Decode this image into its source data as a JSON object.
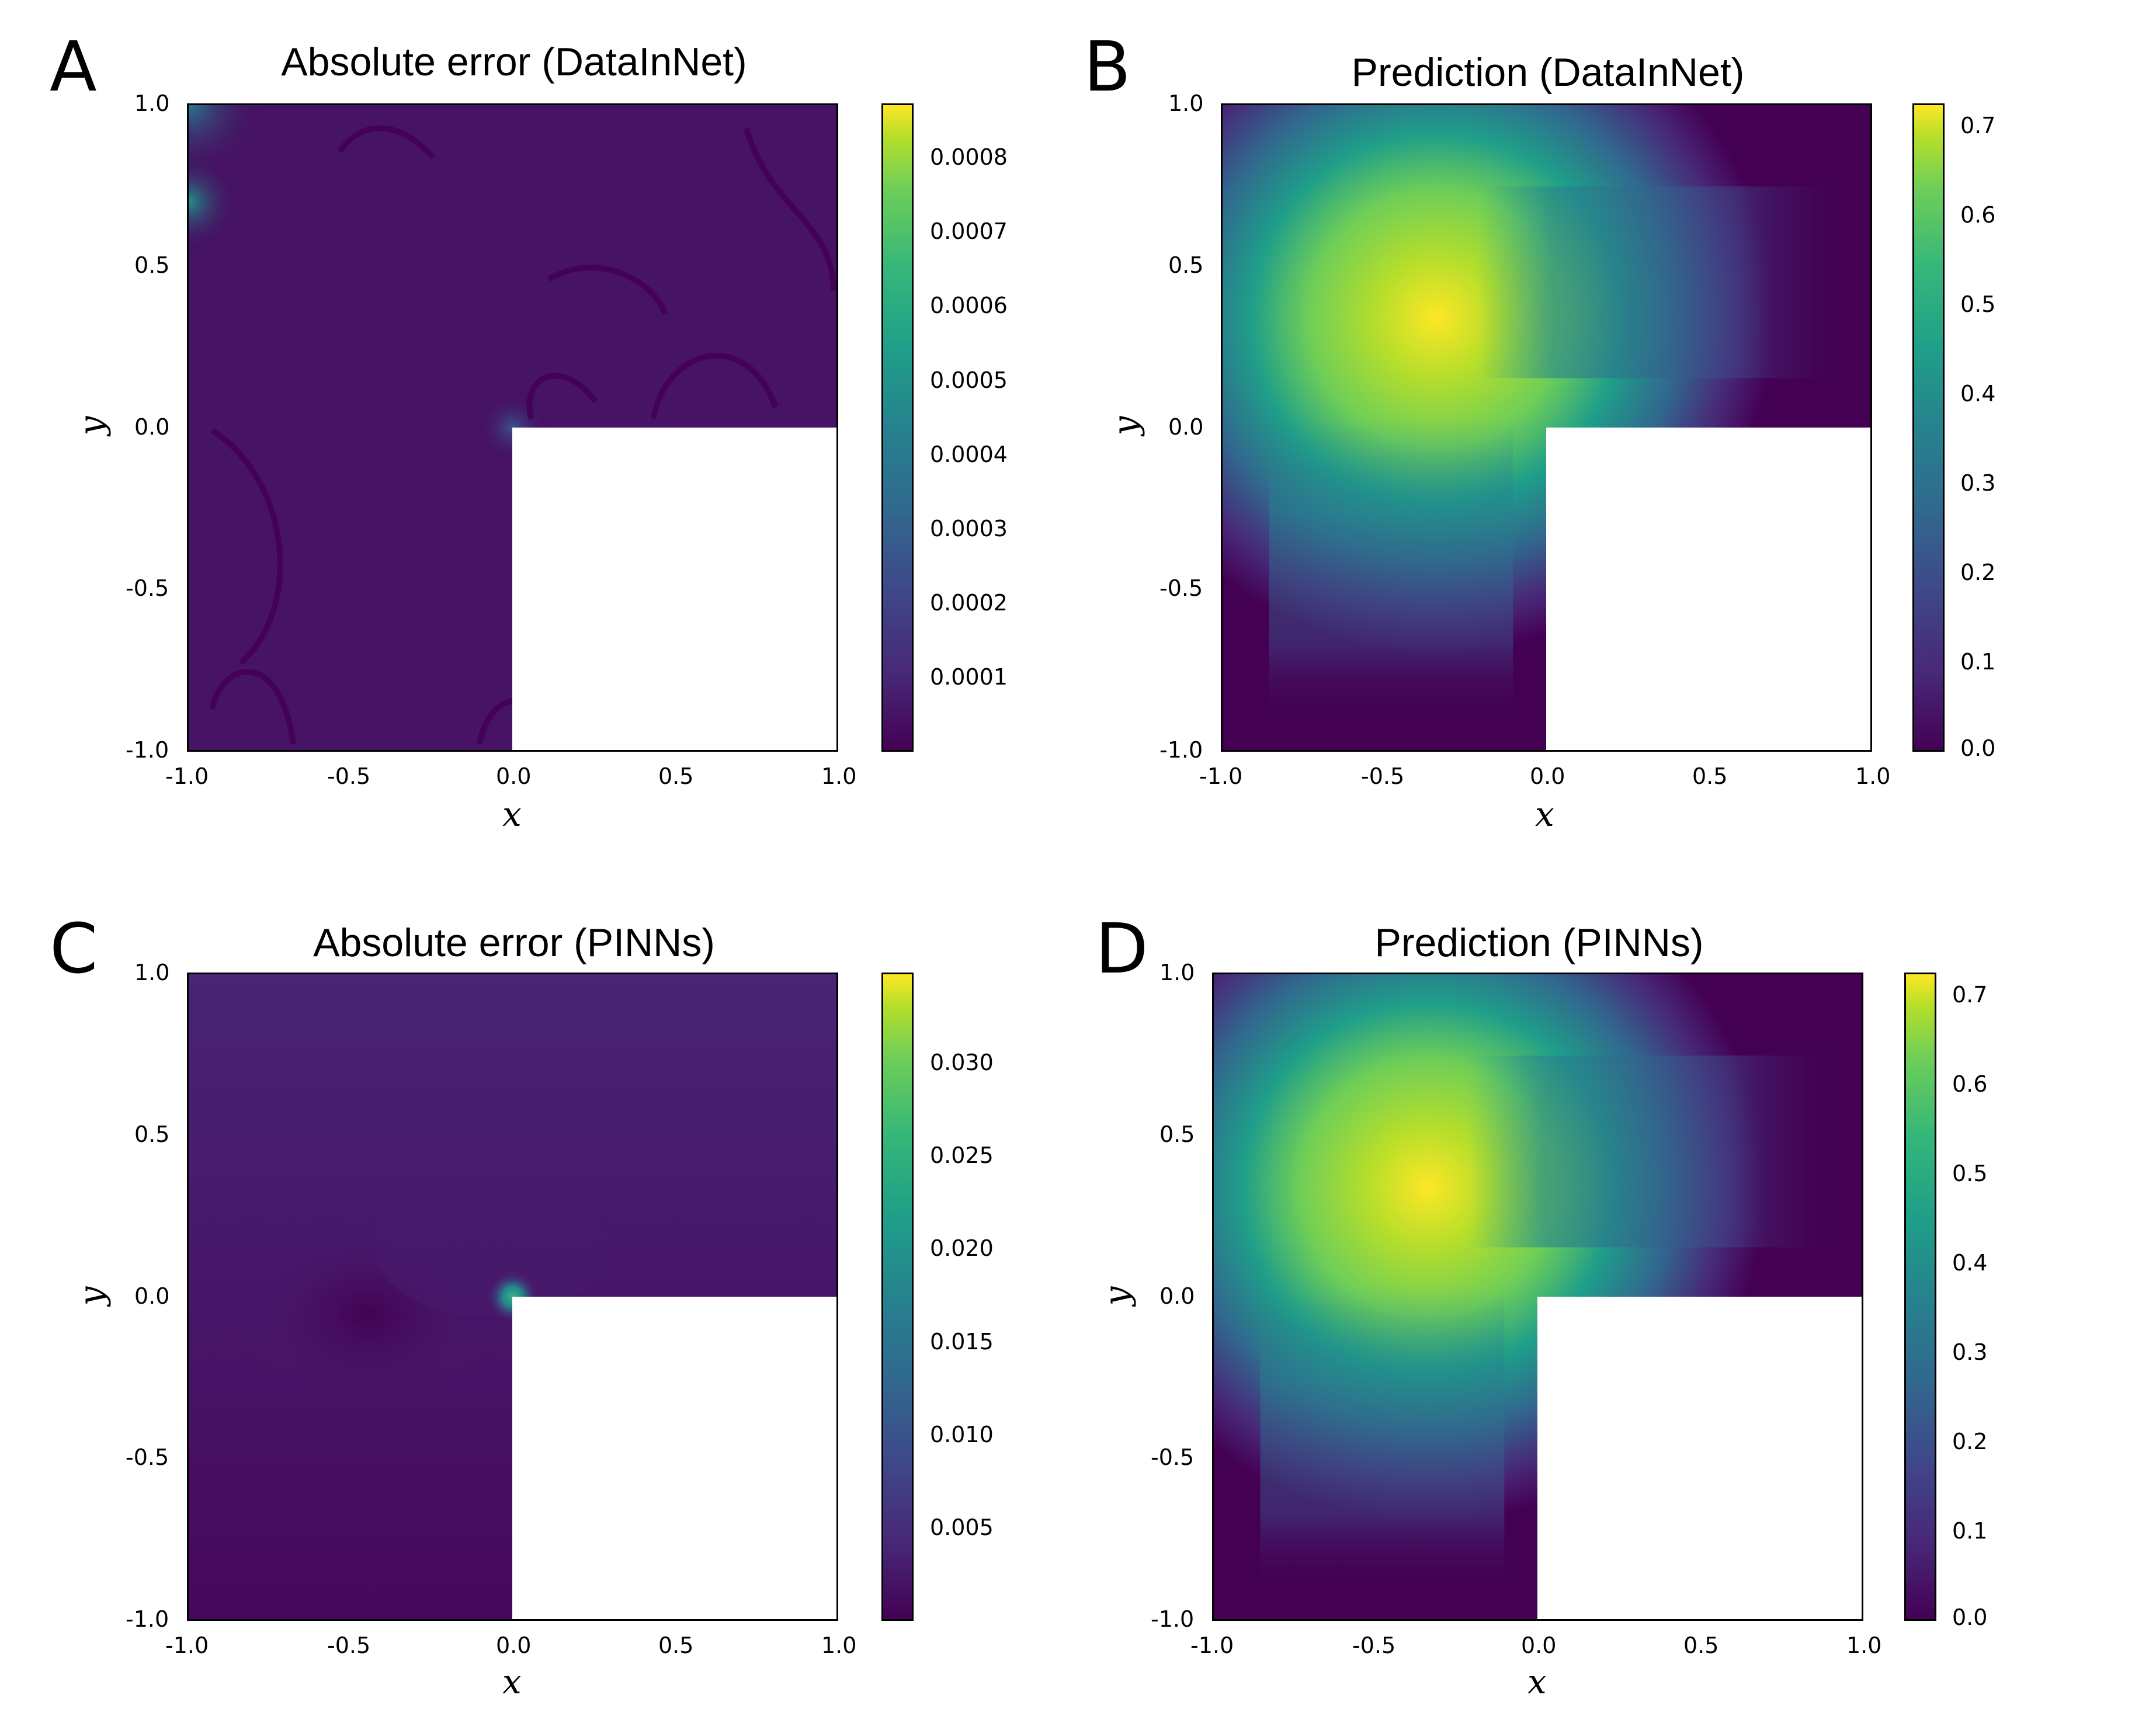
{
  "panels": [
    {
      "letter": "A",
      "title": "Absolute error (DataInNet)",
      "xlabel": "x",
      "ylabel": "y",
      "xticks": [
        "-1.0",
        "-0.5",
        "0.0",
        "0.5",
        "1.0"
      ],
      "yticks": [
        "1.0",
        "0.5",
        "0.0",
        "-0.5",
        "-1.0"
      ],
      "colorbar": {
        "min": 0,
        "max": 0.00087,
        "ticks": [
          0.0001,
          0.0002,
          0.0003,
          0.0004,
          0.0005,
          0.0006,
          0.0007,
          0.0008
        ],
        "labels": [
          "0.0001",
          "0.0002",
          "0.0003",
          "0.0004",
          "0.0005",
          "0.0006",
          "0.0007",
          "0.0008"
        ]
      }
    },
    {
      "letter": "B",
      "title": "Prediction (DataInNet)",
      "xlabel": "x",
      "ylabel": "y",
      "xticks": [
        "-1.0",
        "-0.5",
        "0.0",
        "0.5",
        "1.0"
      ],
      "yticks": [
        "1.0",
        "0.5",
        "0.0",
        "-0.5",
        "-1.0"
      ],
      "colorbar": {
        "min": 0,
        "max": 0.725,
        "ticks": [
          0.0,
          0.1,
          0.2,
          0.3,
          0.4,
          0.5,
          0.6,
          0.7
        ],
        "labels": [
          "0.0",
          "0.1",
          "0.2",
          "0.3",
          "0.4",
          "0.5",
          "0.6",
          "0.7"
        ]
      }
    },
    {
      "letter": "C",
      "title": "Absolute error (PINNs)",
      "xlabel": "x",
      "ylabel": "y",
      "xticks": [
        "-1.0",
        "-0.5",
        "0.0",
        "0.5",
        "1.0"
      ],
      "yticks": [
        "1.0",
        "0.5",
        "0.0",
        "-0.5",
        "-1.0"
      ],
      "colorbar": {
        "min": 0,
        "max": 0.0343,
        "ticks": [
          0.005,
          0.01,
          0.015,
          0.02,
          0.025,
          0.03
        ],
        "labels": [
          "0.005",
          "0.010",
          "0.015",
          "0.020",
          "0.025",
          "0.030"
        ]
      }
    },
    {
      "letter": "D",
      "title": "Prediction (PINNs)",
      "xlabel": "x",
      "ylabel": "y",
      "xticks": [
        "-1.0",
        "-0.5",
        "0.0",
        "0.5",
        "1.0"
      ],
      "yticks": [
        "1.0",
        "0.5",
        "0.0",
        "-0.5",
        "-1.0"
      ],
      "colorbar": {
        "min": 0,
        "max": 0.725,
        "ticks": [
          0.0,
          0.1,
          0.2,
          0.3,
          0.4,
          0.5,
          0.6,
          0.7
        ],
        "labels": [
          "0.0",
          "0.1",
          "0.2",
          "0.3",
          "0.4",
          "0.5",
          "0.6",
          "0.7"
        ]
      }
    }
  ],
  "chart_data": [
    {
      "type": "heatmap",
      "title": "Absolute error (DataInNet)",
      "xlabel": "x",
      "ylabel": "y",
      "xlim": [
        -1.0,
        1.0
      ],
      "ylim": [
        -1.0,
        1.0
      ],
      "domain": "L-shaped, excluded region x in [0,1], y in [-1,0]",
      "colorbar_range": [
        0,
        0.00087
      ],
      "colormap": "viridis"
    },
    {
      "type": "heatmap",
      "title": "Prediction (DataInNet)",
      "xlabel": "x",
      "ylabel": "y",
      "xlim": [
        -1.0,
        1.0
      ],
      "ylim": [
        -1.0,
        1.0
      ],
      "domain": "L-shaped, excluded region x in [0,1], y in [-1,0]",
      "colorbar_range": [
        0,
        0.725
      ],
      "colormap": "viridis",
      "peak": [
        -0.4,
        0.35
      ]
    },
    {
      "type": "heatmap",
      "title": "Absolute error (PINNs)",
      "xlabel": "x",
      "ylabel": "y",
      "xlim": [
        -1.0,
        1.0
      ],
      "ylim": [
        -1.0,
        1.0
      ],
      "domain": "L-shaped, excluded region x in [0,1], y in [-1,0]",
      "colorbar_range": [
        0,
        0.0343
      ],
      "colormap": "viridis",
      "peak": [
        0.0,
        0.0
      ]
    },
    {
      "type": "heatmap",
      "title": "Prediction (PINNs)",
      "xlabel": "x",
      "ylabel": "y",
      "xlim": [
        -1.0,
        1.0
      ],
      "ylim": [
        -1.0,
        1.0
      ],
      "domain": "L-shaped, excluded region x in [0,1], y in [-1,0]",
      "colorbar_range": [
        0,
        0.725
      ],
      "colormap": "viridis",
      "peak": [
        -0.4,
        0.35
      ]
    }
  ]
}
